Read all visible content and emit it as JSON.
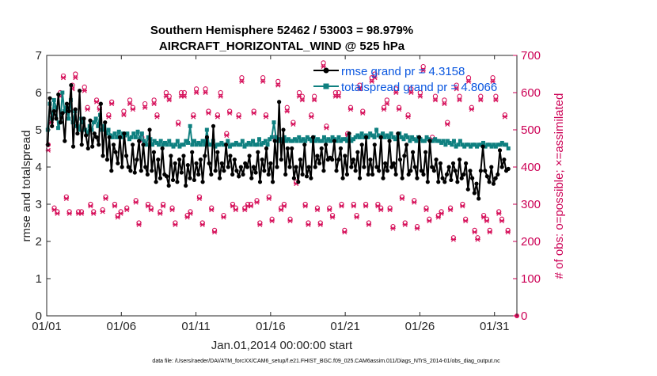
{
  "chart_data": {
    "type": "line",
    "title_lines": [
      "Southern Hemisphere 52462 / 53003 = 98.979%",
      "AIRCRAFT_HORIZONTAL_WIND @ 525 hPa"
    ],
    "xlabel": "Jan.01,2014 00:00:00 start",
    "ylabel": "rmse and totalspread",
    "ylabel_right": "# of obs: o=possible; ×=assimilated",
    "footer": "data file: /Users/raeder/DAI/ATM_forcXX/CAM6_setup/f.e21.FHIST_BGC.f09_025.CAM6assim.011/Diags_NTrS_2014-01/obs_diag_output.nc",
    "xlim": [
      0,
      31.5
    ],
    "ylim": [
      0,
      7
    ],
    "ylim_right": [
      0,
      700
    ],
    "x_ticks": [
      0,
      5,
      10,
      15,
      20,
      25,
      30
    ],
    "x_tick_labels": [
      "01/01",
      "01/06",
      "01/11",
      "01/16",
      "01/21",
      "01/26",
      "01/31"
    ],
    "y_ticks": [
      0,
      1,
      2,
      3,
      4,
      5,
      6,
      7
    ],
    "y_tick_labels": [
      "0",
      "1",
      "2",
      "3",
      "4",
      "5",
      "6",
      "7"
    ],
    "y_right_ticks": [
      0,
      100,
      200,
      300,
      400,
      500,
      600,
      700
    ],
    "y_right_tick_labels": [
      "0",
      "100",
      "200",
      "300",
      "400",
      "500",
      "600",
      "700"
    ],
    "legend": [
      "rmse grand pr = 4.3158",
      "totalspread grand pr = 4.8066"
    ],
    "colors": {
      "rmse": "#000000",
      "spread": "#0f8080",
      "obs": "#d6105a",
      "legend_text": "#0a57e0"
    },
    "rmse": [
      4.6,
      5.85,
      5.1,
      5.5,
      5.3,
      5.95,
      5.2,
      5.45,
      4.7,
      5.7,
      5.5,
      6.2,
      4.55,
      5.55,
      4.9,
      6.05,
      4.6,
      5.3,
      4.85,
      4.5,
      5.25,
      4.55,
      4.9,
      4.8,
      4.6,
      5.7,
      4.3,
      5.2,
      4.2,
      4.8,
      3.9,
      4.6,
      4.4,
      4.1,
      4.8,
      4.0,
      4.9,
      4.3,
      4.0,
      3.9,
      4.6,
      3.85,
      4.2,
      4.7,
      3.9,
      4.6,
      4.0,
      3.8,
      5.0,
      3.9,
      4.4,
      3.6,
      4.2,
      3.7,
      4.5,
      3.8,
      3.75,
      3.5,
      4.3,
      3.65,
      4.1,
      3.6,
      4.2,
      3.85,
      4.3,
      3.5,
      4.05,
      3.7,
      4.4,
      3.65,
      4.1,
      3.8,
      4.2,
      3.6,
      4.3,
      4.8,
      4.1,
      3.8,
      5.1,
      3.9,
      4.4,
      3.7,
      4.1,
      3.9,
      4.6,
      4.0,
      4.3,
      3.8,
      4.2,
      3.9,
      3.75,
      4.0,
      3.8,
      4.1,
      4.0,
      4.3,
      3.7,
      4.0,
      3.85,
      4.4,
      3.6,
      4.2,
      3.9,
      4.5,
      3.8,
      4.1,
      3.6,
      4.7,
      4.0,
      5.75,
      4.2,
      5.0,
      3.8,
      4.5,
      4.0,
      4.5,
      3.7,
      4.0,
      3.6,
      4.2,
      3.8,
      4.6,
      3.75,
      4.0,
      3.7,
      4.8,
      4.0,
      4.3,
      4.1,
      4.5,
      3.9,
      4.6,
      4.2,
      4.25,
      4.2,
      4.7,
      3.9,
      4.2,
      4.5,
      3.7,
      4.3,
      3.8,
      4.9,
      4.0,
      4.2,
      3.9,
      4.4,
      3.7,
      4.6,
      4.0,
      4.8,
      3.8,
      4.2,
      3.8,
      4.6,
      4.0,
      3.9,
      4.8,
      3.7,
      4.1,
      3.9,
      4.7,
      4.0,
      4.1,
      3.8,
      4.9,
      4.2,
      3.7,
      4.3,
      4.6,
      3.8,
      3.9,
      4.4,
      4.0,
      3.7,
      4.8,
      3.9,
      3.8,
      4.4,
      3.6,
      4.7,
      4.0,
      3.9,
      4.2,
      3.6,
      4.1,
      3.7,
      3.6,
      3.8,
      4.0,
      3.65,
      4.1,
      3.9,
      3.6,
      4.2,
      3.7,
      3.8,
      4.1,
      3.4,
      3.9,
      3.7,
      3.3,
      3.55,
      3.15,
      3.9,
      4.55,
      3.9,
      3.75,
      3.6,
      4.0,
      3.55,
      3.7,
      3.8,
      4.45,
      4.0,
      4.2,
      3.9,
      3.95
    ],
    "spread": [
      5.0,
      5.7,
      5.3,
      5.8,
      5.6,
      5.05,
      5.2,
      6.0,
      5.5,
      5.6,
      5.3,
      5.8,
      5.2,
      5.5,
      5.1,
      5.0,
      5.3,
      5.2,
      5.0,
      4.9,
      5.1,
      5.0,
      5.2,
      5.3,
      5.1,
      5.4,
      5.0,
      5.1,
      4.9,
      5.0,
      4.85,
      4.8,
      4.9,
      4.8,
      4.95,
      4.8,
      4.9,
      4.85,
      4.9,
      4.75,
      4.8,
      4.9,
      4.8,
      4.95,
      4.75,
      4.9,
      4.7,
      4.6,
      4.8,
      4.75,
      4.6,
      4.7,
      4.65,
      4.6,
      4.7,
      4.6,
      4.65,
      4.6,
      4.7,
      4.6,
      4.55,
      4.6,
      4.7,
      4.55,
      4.6,
      4.6,
      4.7,
      4.65,
      5.1,
      4.6,
      4.7,
      4.6,
      4.65,
      4.6,
      4.7,
      4.6,
      5.0,
      4.6,
      4.6,
      4.7,
      4.55,
      4.6,
      4.6,
      4.65,
      4.6,
      4.6,
      4.7,
      4.55,
      4.6,
      4.6,
      4.65,
      4.6,
      4.6,
      4.7,
      4.55,
      4.6,
      4.65,
      4.6,
      4.7,
      4.6,
      4.6,
      4.75,
      4.6,
      4.65,
      4.7,
      4.6,
      4.75,
      4.8,
      5.2,
      4.8,
      4.7,
      4.75,
      4.7,
      4.8,
      4.7,
      4.75,
      4.7,
      4.7,
      4.75,
      4.7,
      4.8,
      4.7,
      4.75,
      4.7,
      4.8,
      4.75,
      4.7,
      4.8,
      4.7,
      4.75,
      4.7,
      4.7,
      4.8,
      4.7,
      4.75,
      4.7,
      4.8,
      4.75,
      4.7,
      4.8,
      4.7,
      4.75,
      4.75,
      4.7,
      4.8,
      4.7,
      4.75,
      4.8,
      4.85,
      4.8,
      4.9,
      4.8,
      4.85,
      4.8,
      4.9,
      4.85,
      4.8,
      5.0,
      4.85,
      4.8,
      4.9,
      4.8,
      4.85,
      4.8,
      4.9,
      4.8,
      4.75,
      4.8,
      4.9,
      4.8,
      4.75,
      4.85,
      4.8,
      4.7,
      4.8,
      4.75,
      4.7,
      4.8,
      4.75,
      4.7,
      4.7,
      4.8,
      4.75,
      4.7,
      4.7,
      4.75,
      4.7,
      4.7,
      4.65,
      4.7,
      4.6,
      4.7,
      4.65,
      4.6,
      4.7,
      4.55,
      4.6,
      4.7,
      4.6,
      4.55,
      4.6,
      4.6,
      4.55,
      4.6,
      4.6,
      4.55,
      4.6,
      4.6,
      4.65,
      4.55,
      4.6,
      4.6,
      4.55,
      4.6,
      4.55,
      4.6,
      4.6,
      4.65,
      4.6,
      4.6,
      4.5
    ],
    "obs_possible": [
      460,
      540,
      290,
      280,
      600,
      645,
      320,
      280,
      620,
      650,
      280,
      280,
      615,
      560,
      300,
      280,
      580,
      560,
      285,
      320,
      540,
      575,
      300,
      270,
      280,
      550,
      290,
      580,
      560,
      310,
      250,
      480,
      570,
      300,
      290,
      580,
      540,
      280,
      300,
      600,
      590,
      290,
      250,
      520,
      600,
      600,
      270,
      280,
      540,
      610,
      320,
      250,
      610,
      550,
      290,
      230,
      540,
      600,
      270,
      490,
      550,
      300,
      290,
      540,
      640,
      290,
      300,
      300,
      550,
      310,
      250,
      640,
      540,
      320,
      260,
      480,
      630,
      290,
      300,
      560,
      260,
      520,
      360,
      600,
      590,
      300,
      250,
      540,
      590,
      290,
      250,
      680,
      510,
      290,
      270,
      600,
      600,
      300,
      230,
      490,
      560,
      300,
      270,
      620,
      550,
      300,
      250,
      640,
      650,
      300,
      290,
      560,
      580,
      290,
      240,
      610,
      560,
      320,
      250,
      540,
      610,
      310,
      240,
      600,
      670,
      290,
      260,
      480,
      590,
      270,
      280,
      580,
      520,
      290,
      210,
      620,
      590,
      300,
      260,
      640,
      560,
      230,
      210,
      590,
      270,
      260,
      230,
      640,
      590,
      280,
      260,
      540,
      230
    ],
    "obs_assimilated": [
      445,
      520,
      285,
      275,
      590,
      640,
      315,
      275,
      610,
      640,
      275,
      275,
      605,
      555,
      295,
      275,
      575,
      555,
      280,
      315,
      535,
      570,
      295,
      265,
      275,
      540,
      285,
      570,
      555,
      305,
      245,
      470,
      560,
      295,
      285,
      570,
      535,
      275,
      295,
      590,
      580,
      285,
      245,
      515,
      590,
      590,
      265,
      275,
      535,
      600,
      315,
      245,
      600,
      545,
      285,
      225,
      535,
      590,
      265,
      485,
      545,
      295,
      285,
      535,
      630,
      285,
      295,
      295,
      545,
      305,
      245,
      630,
      535,
      315,
      255,
      475,
      620,
      285,
      295,
      550,
      255,
      515,
      355,
      590,
      580,
      295,
      245,
      535,
      580,
      285,
      245,
      670,
      505,
      285,
      265,
      590,
      590,
      295,
      225,
      485,
      555,
      295,
      265,
      610,
      545,
      295,
      245,
      630,
      640,
      295,
      285,
      555,
      570,
      285,
      235,
      600,
      555,
      315,
      245,
      535,
      600,
      305,
      235,
      590,
      660,
      285,
      255,
      475,
      580,
      265,
      275,
      570,
      515,
      285,
      205,
      610,
      580,
      295,
      255,
      630,
      555,
      225,
      205,
      580,
      265,
      255,
      225,
      630,
      580,
      275,
      255,
      535,
      225
    ]
  }
}
